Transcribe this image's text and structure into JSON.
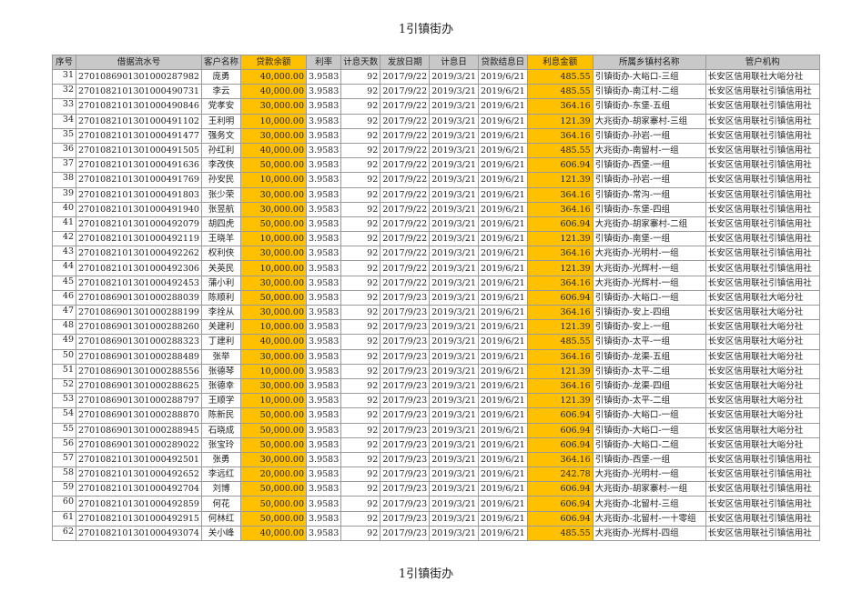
{
  "title": "1引镇街办",
  "footer": "1引镇街办",
  "colors": {
    "highlight": "#ffc000",
    "header_bg": "#c8c8c8"
  },
  "columns": [
    "序号",
    "借据流水号",
    "客户名称",
    "贷款余额",
    "利率",
    "计息天数",
    "发放日期",
    "计息日",
    "贷款结息日",
    "利息金额",
    "所属乡镇村名称",
    "管户机构"
  ],
  "rows": [
    [
      "31",
      "2701086901301000287982",
      "庞勇",
      "40,000.00",
      "3.9583",
      "92",
      "2017/9/22",
      "2019/3/21",
      "2019/6/21",
      "485.55",
      "引镇街办-大峪口-三组",
      "长安区信用联社大峪分社"
    ],
    [
      "32",
      "2701082101301000490731",
      "李云",
      "40,000.00",
      "3.9583",
      "92",
      "2017/9/22",
      "2019/3/21",
      "2019/6/21",
      "485.55",
      "引镇街办-南江村-二组",
      "长安区信用联社引镇信用社"
    ],
    [
      "33",
      "2701082101301000490846",
      "党孝安",
      "30,000.00",
      "3.9583",
      "92",
      "2017/9/22",
      "2019/3/21",
      "2019/6/21",
      "364.16",
      "引镇街办-东堡-五组",
      "长安区信用联社引镇信用社"
    ],
    [
      "34",
      "2701082101301000491102",
      "王利明",
      "10,000.00",
      "3.9583",
      "92",
      "2017/9/22",
      "2019/3/21",
      "2019/6/21",
      "121.39",
      "大兆街办-胡家寨村-三组",
      "长安区信用联社引镇信用社"
    ],
    [
      "35",
      "2701082101301000491477",
      "强务文",
      "30,000.00",
      "3.9583",
      "92",
      "2017/9/22",
      "2019/3/21",
      "2019/6/21",
      "364.16",
      "引镇街办-孙岩-一组",
      "长安区信用联社引镇信用社"
    ],
    [
      "36",
      "2701082101301000491505",
      "孙红利",
      "40,000.00",
      "3.9583",
      "92",
      "2017/9/22",
      "2019/3/21",
      "2019/6/21",
      "485.55",
      "大兆街办-南留村-一组",
      "长安区信用联社引镇信用社"
    ],
    [
      "37",
      "2701082101301000491636",
      "李改侠",
      "50,000.00",
      "3.9583",
      "92",
      "2017/9/22",
      "2019/3/21",
      "2019/6/21",
      "606.94",
      "引镇街办-西堡-一组",
      "长安区信用联社引镇信用社"
    ],
    [
      "38",
      "2701082101301000491769",
      "孙安民",
      "10,000.00",
      "3.9583",
      "92",
      "2017/9/22",
      "2019/3/21",
      "2019/6/21",
      "121.39",
      "引镇街办-孙岩-一组",
      "长安区信用联社引镇信用社"
    ],
    [
      "39",
      "2701082101301000491803",
      "张少荣",
      "30,000.00",
      "3.9583",
      "92",
      "2017/9/22",
      "2019/3/21",
      "2019/6/21",
      "364.16",
      "引镇街办-常沟-一组",
      "长安区信用联社引镇信用社"
    ],
    [
      "40",
      "2701082101301000491940",
      "张昱航",
      "30,000.00",
      "3.9583",
      "92",
      "2017/9/22",
      "2019/3/21",
      "2019/6/21",
      "364.16",
      "引镇街办-东堡-四组",
      "长安区信用联社引镇信用社"
    ],
    [
      "41",
      "2701082101301000492079",
      "胡四虎",
      "50,000.00",
      "3.9583",
      "92",
      "2017/9/22",
      "2019/3/21",
      "2019/6/21",
      "606.94",
      "大兆街办-胡家寨村-二组",
      "长安区信用联社引镇信用社"
    ],
    [
      "42",
      "2701082101301000492119",
      "王晓羊",
      "10,000.00",
      "3.9583",
      "92",
      "2017/9/22",
      "2019/3/21",
      "2019/6/21",
      "121.39",
      "引镇街办-南堡-一组",
      "长安区信用联社引镇信用社"
    ],
    [
      "43",
      "2701082101301000492262",
      "权利侠",
      "30,000.00",
      "3.9583",
      "92",
      "2017/9/22",
      "2019/3/21",
      "2019/6/21",
      "364.16",
      "大兆街办-光明村-一组",
      "长安区信用联社引镇信用社"
    ],
    [
      "44",
      "2701082101301000492306",
      "关英民",
      "10,000.00",
      "3.9583",
      "92",
      "2017/9/22",
      "2019/3/21",
      "2019/6/21",
      "121.39",
      "大兆街办-光辉村-一组",
      "长安区信用联社引镇信用社"
    ],
    [
      "45",
      "2701082101301000492453",
      "蒲小利",
      "30,000.00",
      "3.9583",
      "92",
      "2017/9/22",
      "2019/3/21",
      "2019/6/21",
      "364.16",
      "大兆街办-光辉村-一组",
      "长安区信用联社引镇信用社"
    ],
    [
      "46",
      "2701086901301000288039",
      "陈顺利",
      "50,000.00",
      "3.9583",
      "92",
      "2017/9/23",
      "2019/3/21",
      "2019/6/21",
      "606.94",
      "引镇街办-大峪口-一组",
      "长安区信用联社大峪分社"
    ],
    [
      "47",
      "2701086901301000288199",
      "李拴从",
      "30,000.00",
      "3.9583",
      "92",
      "2017/9/23",
      "2019/3/21",
      "2019/6/21",
      "364.16",
      "引镇街办-安上-四组",
      "长安区信用联社大峪分社"
    ],
    [
      "48",
      "2701086901301000288260",
      "关建利",
      "10,000.00",
      "3.9583",
      "92",
      "2017/9/23",
      "2019/3/21",
      "2019/6/21",
      "121.39",
      "引镇街办-安上-一组",
      "长安区信用联社大峪分社"
    ],
    [
      "49",
      "2701086901301000288323",
      "丁建利",
      "40,000.00",
      "3.9583",
      "92",
      "2017/9/23",
      "2019/3/21",
      "2019/6/21",
      "485.55",
      "引镇街办-太平-一组",
      "长安区信用联社大峪分社"
    ],
    [
      "50",
      "2701086901301000288489",
      "张举",
      "30,000.00",
      "3.9583",
      "92",
      "2017/9/23",
      "2019/3/21",
      "2019/6/21",
      "364.16",
      "引镇街办-龙渠-五组",
      "长安区信用联社大峪分社"
    ],
    [
      "51",
      "2701086901301000288556",
      "张德琴",
      "10,000.00",
      "3.9583",
      "92",
      "2017/9/23",
      "2019/3/21",
      "2019/6/21",
      "121.39",
      "引镇街办-太平-二组",
      "长安区信用联社大峪分社"
    ],
    [
      "52",
      "2701086901301000288625",
      "张德幸",
      "30,000.00",
      "3.9583",
      "92",
      "2017/9/23",
      "2019/3/21",
      "2019/6/21",
      "364.16",
      "引镇街办-龙渠-四组",
      "长安区信用联社大峪分社"
    ],
    [
      "53",
      "2701086901301000288797",
      "王顺学",
      "10,000.00",
      "3.9583",
      "92",
      "2017/9/23",
      "2019/3/21",
      "2019/6/21",
      "121.39",
      "引镇街办-太平-二组",
      "长安区信用联社大峪分社"
    ],
    [
      "54",
      "2701086901301000288870",
      "陈新民",
      "50,000.00",
      "3.9583",
      "92",
      "2017/9/23",
      "2019/3/21",
      "2019/6/21",
      "606.94",
      "引镇街办-大峪口-一组",
      "长安区信用联社大峪分社"
    ],
    [
      "55",
      "2701086901301000288945",
      "石晓成",
      "50,000.00",
      "3.9583",
      "92",
      "2017/9/23",
      "2019/3/21",
      "2019/6/21",
      "606.94",
      "引镇街办-大峪口-一组",
      "长安区信用联社大峪分社"
    ],
    [
      "56",
      "2701086901301000289022",
      "张宝玲",
      "50,000.00",
      "3.9583",
      "92",
      "2017/9/23",
      "2019/3/21",
      "2019/6/21",
      "606.94",
      "引镇街办-大峪口-二组",
      "长安区信用联社大峪分社"
    ],
    [
      "57",
      "2701082101301000492501",
      "张勇",
      "30,000.00",
      "3.9583",
      "92",
      "2017/9/23",
      "2019/3/21",
      "2019/6/21",
      "364.16",
      "引镇街办-西堡-一组",
      "长安区信用联社引镇信用社"
    ],
    [
      "58",
      "2701082101301000492652",
      "李远红",
      "20,000.00",
      "3.9583",
      "92",
      "2017/9/23",
      "2019/3/21",
      "2019/6/21",
      "242.78",
      "大兆街办-光明村-一组",
      "长安区信用联社引镇信用社"
    ],
    [
      "59",
      "2701082101301000492704",
      "刘博",
      "50,000.00",
      "3.9583",
      "92",
      "2017/9/23",
      "2019/3/21",
      "2019/6/21",
      "606.94",
      "大兆街办-胡家寨村-一组",
      "长安区信用联社引镇信用社"
    ],
    [
      "60",
      "2701082101301000492859",
      "何花",
      "50,000.00",
      "3.9583",
      "92",
      "2017/9/23",
      "2019/3/21",
      "2019/6/21",
      "606.94",
      "大兆街办-北留村-三组",
      "长安区信用联社引镇信用社"
    ],
    [
      "61",
      "2701082101301000492915",
      "何林红",
      "50,000.00",
      "3.9583",
      "92",
      "2017/9/23",
      "2019/3/21",
      "2019/6/21",
      "606.94",
      "大兆街办-北留村-一十零组",
      "长安区信用联社引镇信用社"
    ],
    [
      "62",
      "2701082101301000493074",
      "关小峰",
      "40,000.00",
      "3.9583",
      "92",
      "2017/9/23",
      "2019/3/21",
      "2019/6/21",
      "485.55",
      "大兆街办-光辉村-四组",
      "长安区信用联社引镇信用社"
    ]
  ]
}
